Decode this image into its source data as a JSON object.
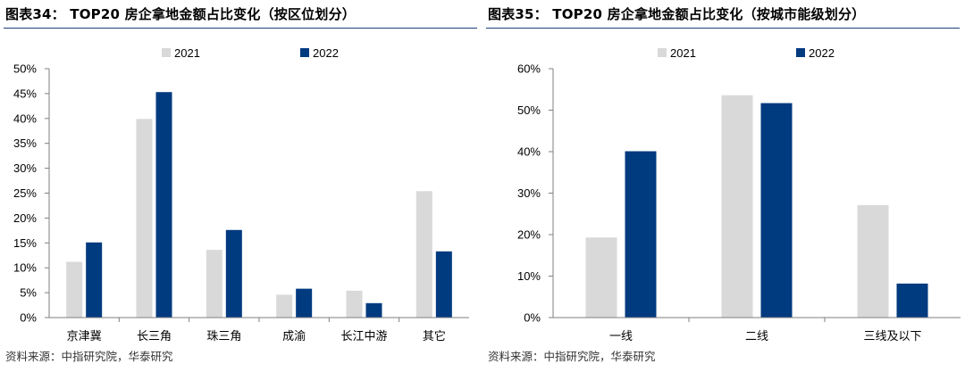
{
  "colors": {
    "series_2021": "#d9d9d9",
    "series_2022": "#003a7f",
    "rule": "#1f3d7a"
  },
  "left": {
    "title": "图表34： TOP20 房企拿地金额占比变化（按区位划分）",
    "source": "资料来源：中指研究院，华泰研究"
  },
  "right": {
    "title": "图表35： TOP20 房企拿地金额占比变化（按城市能级划分）",
    "source": "资料来源：中指研究院，华泰研究"
  },
  "chart_data": [
    {
      "type": "bar",
      "categories": [
        "京津冀",
        "长三角",
        "珠三角",
        "成渝",
        "长江中游",
        "其它"
      ],
      "series": [
        {
          "name": "2021",
          "values": [
            11.2,
            39.9,
            13.6,
            4.6,
            5.4,
            25.4
          ]
        },
        {
          "name": "2022",
          "values": [
            15.1,
            45.3,
            17.6,
            5.8,
            2.9,
            13.3
          ]
        }
      ],
      "ylim": [
        0,
        50
      ],
      "yticks": [
        "0%",
        "5%",
        "10%",
        "15%",
        "20%",
        "25%",
        "30%",
        "35%",
        "40%",
        "45%",
        "50%"
      ],
      "ytick_values": [
        0,
        5,
        10,
        15,
        20,
        25,
        30,
        35,
        40,
        45,
        50
      ],
      "legend": "top-center",
      "grid": false
    },
    {
      "type": "bar",
      "categories": [
        "一线",
        "二线",
        "三线及以下"
      ],
      "series": [
        {
          "name": "2021",
          "values": [
            19.3,
            53.6,
            27.1
          ]
        },
        {
          "name": "2022",
          "values": [
            40.1,
            51.7,
            8.2
          ]
        }
      ],
      "ylim": [
        0,
        60
      ],
      "yticks": [
        "0%",
        "10%",
        "20%",
        "30%",
        "40%",
        "50%",
        "60%"
      ],
      "ytick_values": [
        0,
        10,
        20,
        30,
        40,
        50,
        60
      ],
      "legend": "top-center",
      "grid": false
    }
  ]
}
